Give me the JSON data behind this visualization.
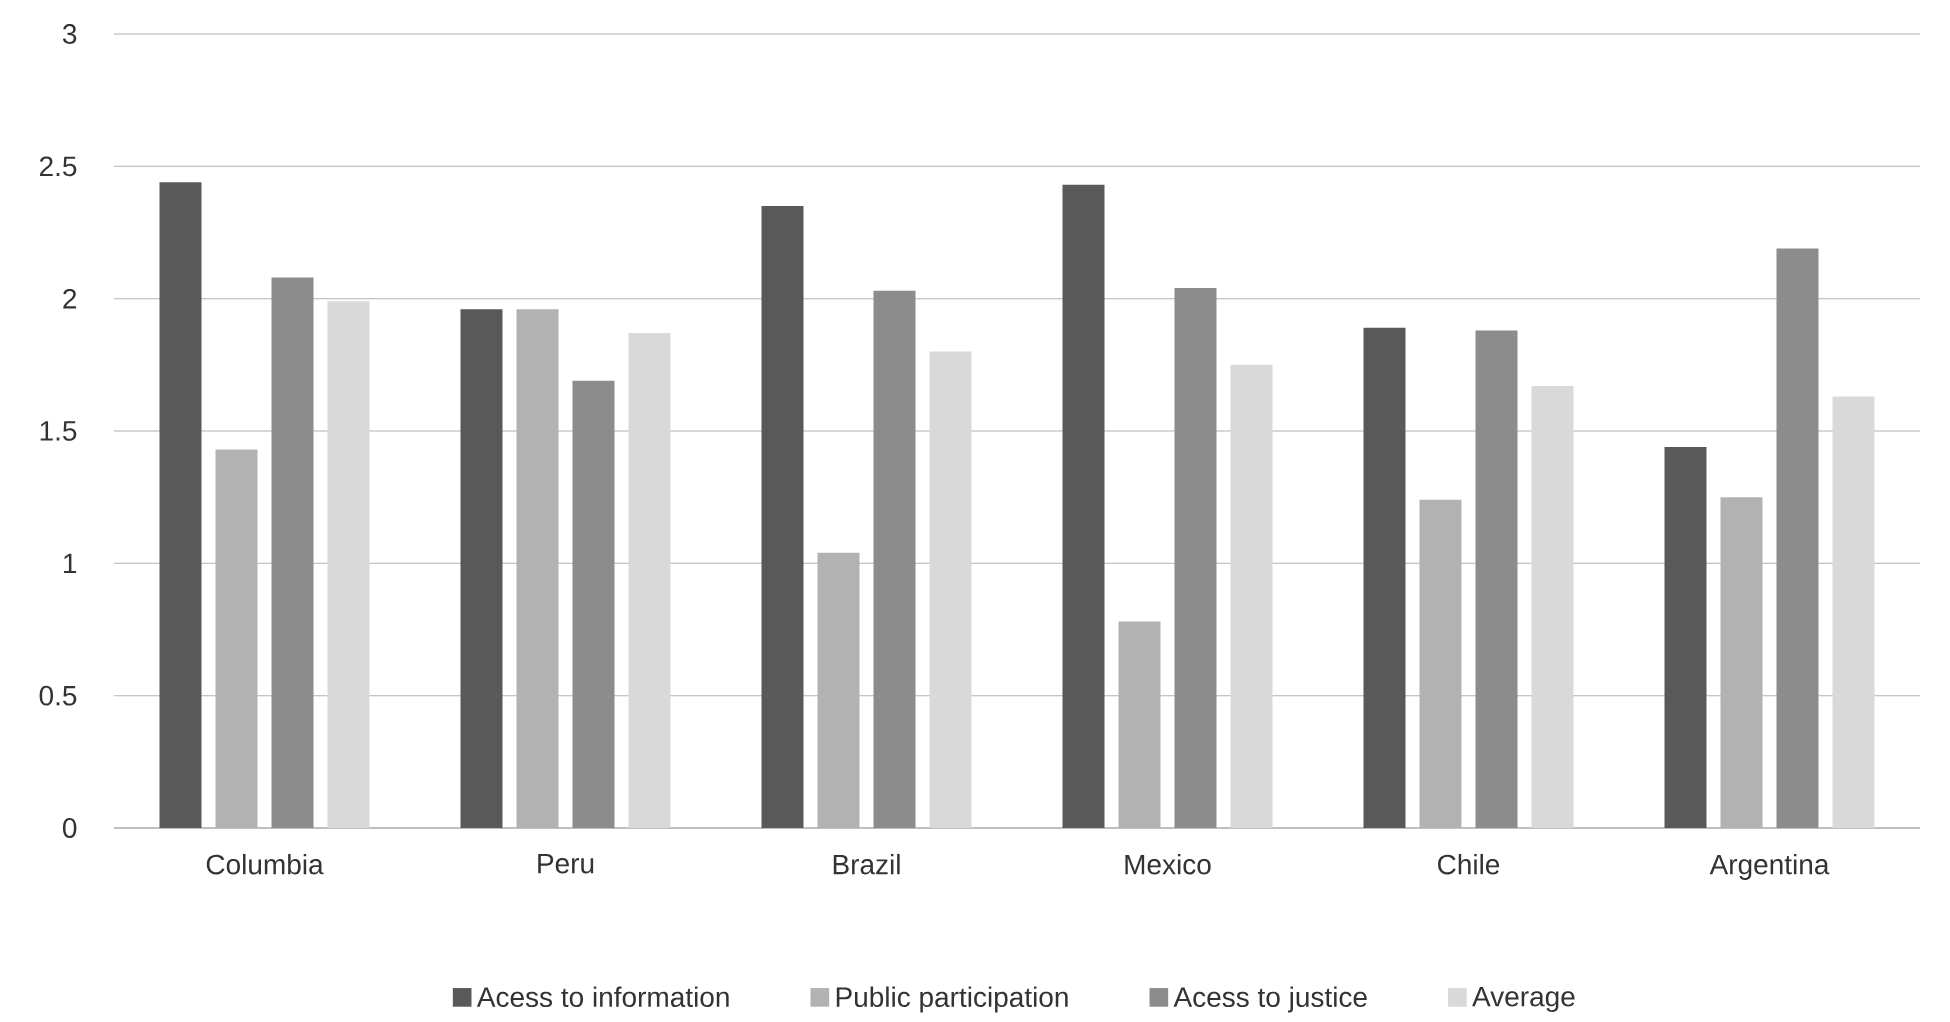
{
  "chart_data": {
    "type": "bar",
    "categories": [
      "Columbia",
      "Peru",
      "Brazil",
      "Mexico",
      "Chile",
      "Argentina"
    ],
    "series": [
      {
        "name": "Acess to information",
        "color": "#595959",
        "values": [
          2.44,
          1.96,
          2.35,
          2.43,
          1.89,
          1.44
        ]
      },
      {
        "name": "Public participation",
        "color": "#b2b2b2",
        "values": [
          1.43,
          1.96,
          1.04,
          0.78,
          1.24,
          1.25
        ]
      },
      {
        "name": "Acess to justice",
        "color": "#8c8c8c",
        "values": [
          2.08,
          1.69,
          2.03,
          2.04,
          1.88,
          2.19
        ]
      },
      {
        "name": "Average",
        "color": "#d9d9d9",
        "values": [
          1.99,
          1.87,
          1.8,
          1.75,
          1.67,
          1.63
        ]
      }
    ],
    "ylim": [
      0,
      3
    ],
    "yticks": [
      0,
      0.5,
      1,
      1.5,
      2,
      2.5,
      3
    ],
    "grid": "y",
    "legend": "bottom"
  }
}
